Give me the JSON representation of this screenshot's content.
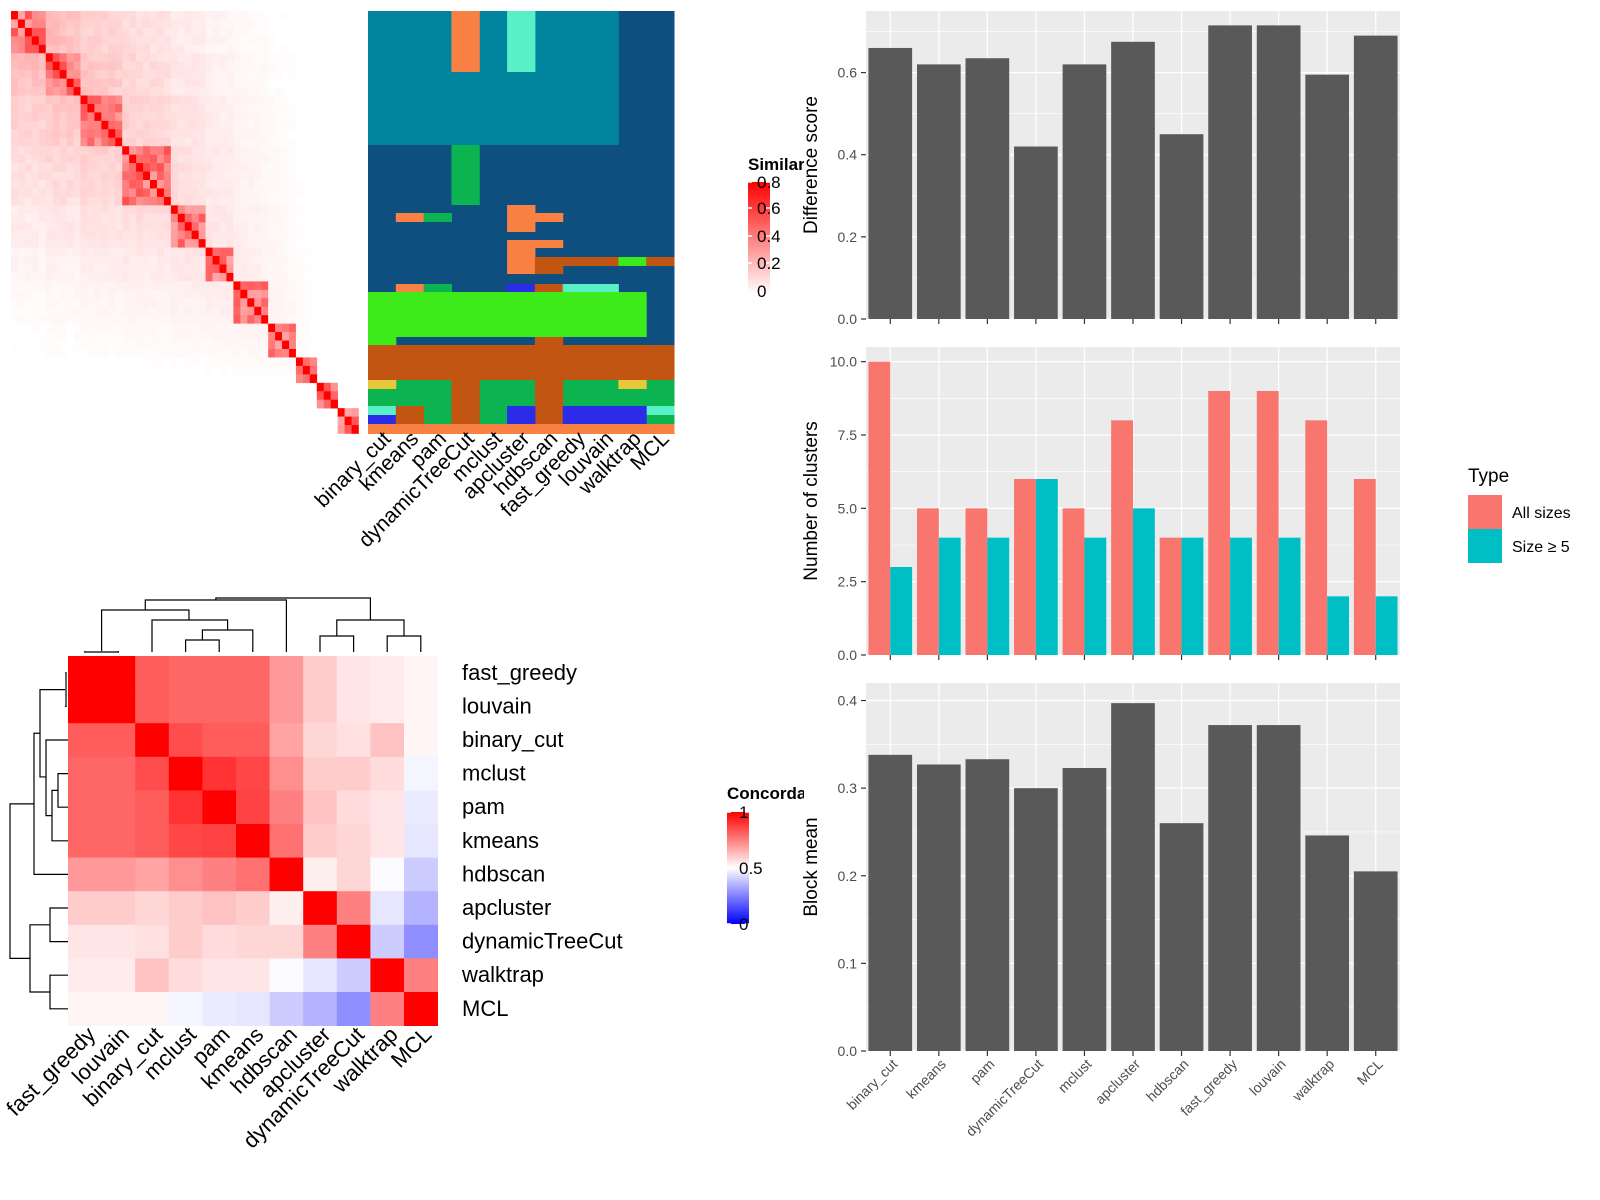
{
  "methods": [
    "binary_cut",
    "kmeans",
    "pam",
    "dynamicTreeCut",
    "mclust",
    "apcluster",
    "hdbscan",
    "fast_greedy",
    "louvain",
    "walktrap",
    "MCL"
  ],
  "colors": {
    "bar_gray": "#595959",
    "panel_bg": "#ebebeb",
    "all_sizes": "#F8766D",
    "size_ge_5": "#00BFC4",
    "red": "#ff0000",
    "blue": "#0000ff"
  },
  "similarity_legend": {
    "title": "Similarity",
    "ticks": [
      "0.8",
      "0.6",
      "0.4",
      "0.2",
      "0"
    ]
  },
  "concordance_legend": {
    "title": "Concordance",
    "ticks": [
      "1",
      "0.5",
      "0"
    ]
  },
  "concordance_order": [
    "fast_greedy",
    "louvain",
    "binary_cut",
    "mclust",
    "pam",
    "kmeans",
    "hdbscan",
    "apcluster",
    "dynamicTreeCut",
    "walktrap",
    "MCL"
  ],
  "concordance_matrix": [
    [
      1.0,
      1.0,
      0.82,
      0.8,
      0.8,
      0.8,
      0.7,
      0.6,
      0.55,
      0.54,
      0.52
    ],
    [
      1.0,
      1.0,
      0.82,
      0.8,
      0.8,
      0.8,
      0.7,
      0.6,
      0.55,
      0.54,
      0.52
    ],
    [
      0.82,
      0.82,
      1.0,
      0.85,
      0.82,
      0.82,
      0.68,
      0.58,
      0.56,
      0.62,
      0.52
    ],
    [
      0.8,
      0.8,
      0.85,
      1.0,
      0.9,
      0.86,
      0.72,
      0.6,
      0.6,
      0.57,
      0.48
    ],
    [
      0.8,
      0.8,
      0.82,
      0.9,
      1.0,
      0.87,
      0.75,
      0.62,
      0.57,
      0.55,
      0.46
    ],
    [
      0.8,
      0.8,
      0.82,
      0.86,
      0.87,
      1.0,
      0.78,
      0.6,
      0.58,
      0.55,
      0.45
    ],
    [
      0.7,
      0.7,
      0.68,
      0.72,
      0.75,
      0.78,
      1.0,
      0.53,
      0.58,
      0.49,
      0.4
    ],
    [
      0.6,
      0.6,
      0.58,
      0.6,
      0.62,
      0.6,
      0.53,
      1.0,
      0.75,
      0.45,
      0.35
    ],
    [
      0.55,
      0.55,
      0.56,
      0.6,
      0.57,
      0.58,
      0.58,
      0.75,
      1.0,
      0.4,
      0.28
    ],
    [
      0.54,
      0.54,
      0.62,
      0.57,
      0.55,
      0.55,
      0.49,
      0.45,
      0.4,
      1.0,
      0.75
    ],
    [
      0.52,
      0.52,
      0.52,
      0.48,
      0.46,
      0.45,
      0.4,
      0.35,
      0.28,
      0.75,
      1.0
    ]
  ],
  "chart_data": [
    {
      "type": "bar",
      "categories": [
        "binary_cut",
        "kmeans",
        "pam",
        "dynamicTreeCut",
        "mclust",
        "apcluster",
        "hdbscan",
        "fast_greedy",
        "louvain",
        "walktrap",
        "MCL"
      ],
      "values": [
        0.66,
        0.62,
        0.635,
        0.42,
        0.62,
        0.675,
        0.45,
        0.715,
        0.715,
        0.595,
        0.69
      ],
      "ylabel": "Difference score",
      "ylim": [
        0,
        0.75
      ],
      "yticks": [
        "0.0",
        "0.2",
        "0.4",
        "0.6"
      ],
      "grid": true
    },
    {
      "type": "bar",
      "categories": [
        "binary_cut",
        "kmeans",
        "pam",
        "dynamicTreeCut",
        "mclust",
        "apcluster",
        "hdbscan",
        "fast_greedy",
        "louvain",
        "walktrap",
        "MCL"
      ],
      "series": [
        {
          "name": "All sizes",
          "values": [
            10,
            5,
            5,
            6,
            5,
            8,
            4,
            9,
            9,
            8,
            6
          ]
        },
        {
          "name": "Size ≥ 5",
          "values": [
            3,
            4,
            4,
            6,
            4,
            5,
            4,
            4,
            4,
            2,
            2
          ]
        }
      ],
      "ylabel": "Number of clusters",
      "ylim": [
        0,
        10.5
      ],
      "yticks": [
        "0.0",
        "2.5",
        "5.0",
        "7.5",
        "10.0"
      ],
      "legend": {
        "title": "Type",
        "position": "right"
      },
      "grid": true
    },
    {
      "type": "bar",
      "categories": [
        "binary_cut",
        "kmeans",
        "pam",
        "dynamicTreeCut",
        "mclust",
        "apcluster",
        "hdbscan",
        "fast_greedy",
        "louvain",
        "walktrap",
        "MCL"
      ],
      "values": [
        0.338,
        0.327,
        0.333,
        0.3,
        0.323,
        0.397,
        0.26,
        0.372,
        0.372,
        0.246,
        0.205
      ],
      "ylabel": "Block mean",
      "ylim": [
        0,
        0.42
      ],
      "yticks": [
        "0.0",
        "0.1",
        "0.2",
        "0.3",
        "0.4"
      ],
      "grid": true
    }
  ]
}
